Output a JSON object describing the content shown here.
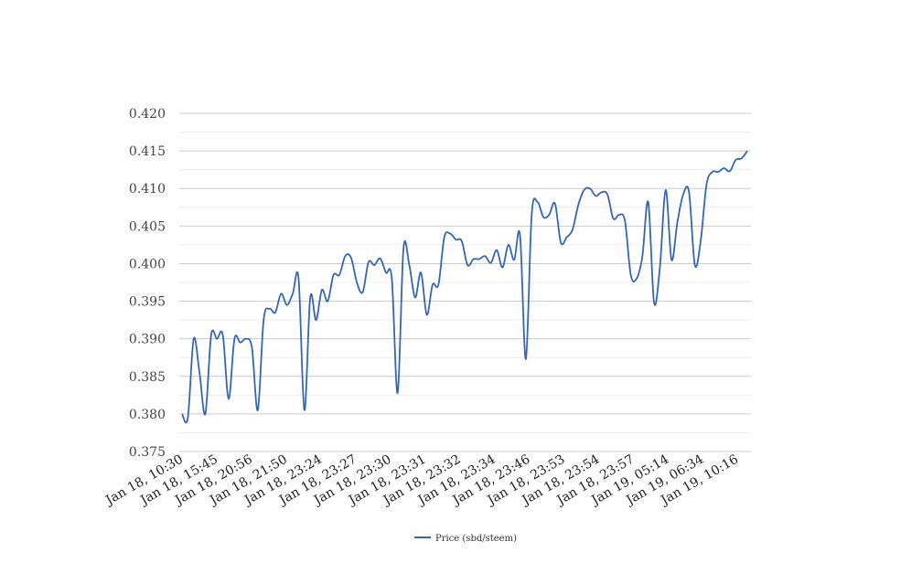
{
  "chart_data": {
    "type": "line",
    "y_tick_labels": [
      "0.375",
      "0.380",
      "0.385",
      "0.390",
      "0.395",
      "0.400",
      "0.405",
      "0.410",
      "0.415",
      "0.420"
    ],
    "x_tick_labels": [
      "Jan 18, 10:30",
      "Jan 18, 15:45",
      "Jan 18, 20:56",
      "Jan 18, 21:50",
      "Jan 18, 23:24",
      "Jan 18, 23:27",
      "Jan 18, 23:30",
      "Jan 18, 23:31",
      "Jan 18, 23:32",
      "Jan 18, 23:34",
      "Jan 18, 23:46",
      "Jan 18, 23:53",
      "Jan 18, 23:54",
      "Jan 18, 23:57",
      "Jan 19, 05:14",
      "Jan 19, 06:34",
      "Jan 19, 10:16"
    ],
    "ylim": [
      0.375,
      0.42
    ],
    "grid": true,
    "legend_position": "bottom",
    "series": [
      {
        "name": "Price (sbd/steem)",
        "color": "#3566b4",
        "values": [
          0.38,
          0.3795,
          0.39,
          0.3855,
          0.38,
          0.3905,
          0.39,
          0.3905,
          0.382,
          0.39,
          0.3895,
          0.39,
          0.3888,
          0.3805,
          0.3925,
          0.394,
          0.3935,
          0.396,
          0.3945,
          0.396,
          0.398,
          0.3805,
          0.3955,
          0.3925,
          0.3965,
          0.395,
          0.3985,
          0.3985,
          0.401,
          0.4008,
          0.3975,
          0.3962,
          0.4002,
          0.3998,
          0.4007,
          0.3988,
          0.398,
          0.3828,
          0.402,
          0.3998,
          0.3955,
          0.3988,
          0.3932,
          0.3972,
          0.3972,
          0.4035,
          0.404,
          0.4032,
          0.403,
          0.3998,
          0.4006,
          0.4006,
          0.401,
          0.4001,
          0.4018,
          0.3995,
          0.4025,
          0.4005,
          0.4038,
          0.3873,
          0.4065,
          0.4082,
          0.4062,
          0.4065,
          0.408,
          0.4028,
          0.4035,
          0.4045,
          0.4078,
          0.4098,
          0.41,
          0.409,
          0.4095,
          0.4092,
          0.406,
          0.4065,
          0.4057,
          0.3985,
          0.398,
          0.401,
          0.4082,
          0.3948,
          0.3995,
          0.4098,
          0.4005,
          0.4055,
          0.4092,
          0.4095,
          0.3998,
          0.403,
          0.4105,
          0.4122,
          0.4122,
          0.4127,
          0.4123,
          0.4138,
          0.414,
          0.415
        ]
      }
    ]
  }
}
